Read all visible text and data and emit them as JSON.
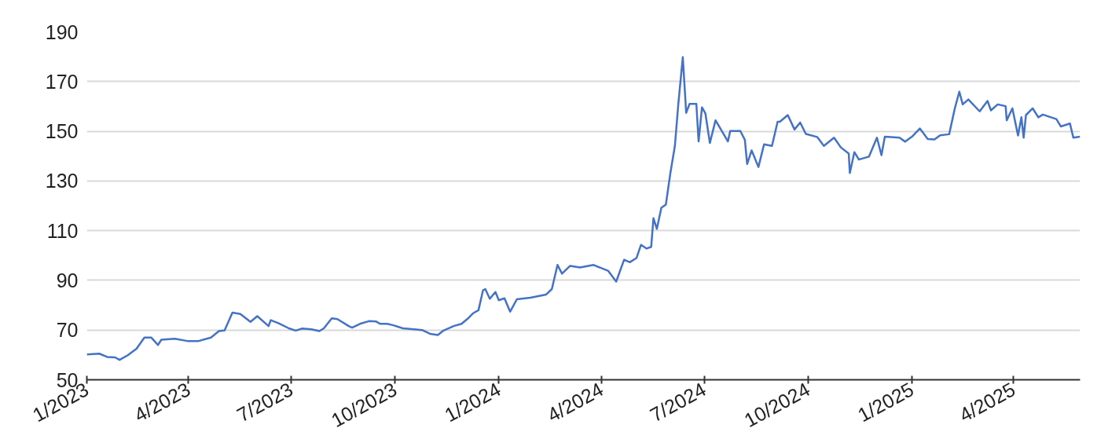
{
  "chart_data": {
    "type": "line",
    "xlim": [
      "2023-01-01",
      "2025-05-30"
    ],
    "ylim": [
      50,
      190
    ],
    "yticks": [
      50,
      70,
      90,
      110,
      130,
      150,
      170,
      190
    ],
    "xticks": [
      {
        "value": "2023-01-01",
        "label": "1/2023"
      },
      {
        "value": "2023-04-01",
        "label": "4/2023"
      },
      {
        "value": "2023-07-01",
        "label": "7/2023"
      },
      {
        "value": "2023-10-01",
        "label": "10/2023"
      },
      {
        "value": "2024-01-01",
        "label": "1/2024"
      },
      {
        "value": "2024-04-01",
        "label": "4/2024"
      },
      {
        "value": "2024-07-01",
        "label": "7/2024"
      },
      {
        "value": "2024-10-01",
        "label": "10/2024"
      },
      {
        "value": "2025-01-01",
        "label": "1/2025"
      },
      {
        "value": "2025-04-01",
        "label": "4/2025"
      }
    ],
    "grid": "y",
    "marker": "none",
    "line_style": "solid",
    "x": [
      "2023-01-01",
      "2023-01-12",
      "2023-01-19",
      "2023-01-26",
      "2023-01-30",
      "2023-02-06",
      "2023-02-14",
      "2023-02-21",
      "2023-02-27",
      "2023-03-05",
      "2023-03-08",
      "2023-03-20",
      "2023-03-31",
      "2023-04-10",
      "2023-04-21",
      "2023-04-28",
      "2023-05-03",
      "2023-05-10",
      "2023-05-17",
      "2023-05-26",
      "2023-06-01",
      "2023-06-11",
      "2023-06-13",
      "2023-06-20",
      "2023-06-29",
      "2023-07-05",
      "2023-07-11",
      "2023-07-19",
      "2023-07-26",
      "2023-07-30",
      "2023-08-06",
      "2023-08-11",
      "2023-08-21",
      "2023-08-24",
      "2023-08-31",
      "2023-09-08",
      "2023-09-14",
      "2023-09-18",
      "2023-09-24",
      "2023-09-29",
      "2023-10-08",
      "2023-10-18",
      "2023-10-25",
      "2023-11-01",
      "2023-11-08",
      "2023-11-13",
      "2023-11-22",
      "2023-11-29",
      "2023-12-04",
      "2023-12-09",
      "2023-12-14",
      "2023-12-18",
      "2023-12-20",
      "2023-12-24",
      "2023-12-29",
      "2024-01-01",
      "2024-01-06",
      "2024-01-11",
      "2024-01-17",
      "2024-01-29",
      "2024-02-12",
      "2024-02-17",
      "2024-02-22",
      "2024-02-26",
      "2024-03-04",
      "2024-03-13",
      "2024-03-25",
      "2024-04-07",
      "2024-04-14",
      "2024-04-21",
      "2024-04-26",
      "2024-05-02",
      "2024-05-06",
      "2024-05-11",
      "2024-05-15",
      "2024-05-17",
      "2024-05-20",
      "2024-05-24",
      "2024-05-28",
      "2024-06-01",
      "2024-06-05",
      "2024-06-08",
      "2024-06-12",
      "2024-06-15",
      "2024-06-18",
      "2024-06-24",
      "2024-06-26",
      "2024-06-29",
      "2024-07-02",
      "2024-07-06",
      "2024-07-11",
      "2024-07-22",
      "2024-07-24",
      "2024-08-02",
      "2024-08-06",
      "2024-08-08",
      "2024-08-12",
      "2024-08-18",
      "2024-08-23",
      "2024-08-30",
      "2024-09-04",
      "2024-09-06",
      "2024-09-13",
      "2024-09-19",
      "2024-09-24",
      "2024-09-29",
      "2024-10-09",
      "2024-10-15",
      "2024-10-24",
      "2024-10-30",
      "2024-11-06",
      "2024-11-07",
      "2024-11-11",
      "2024-11-15",
      "2024-11-24",
      "2024-12-01",
      "2024-12-05",
      "2024-12-08",
      "2024-12-21",
      "2024-12-26",
      "2025-01-01",
      "2025-01-08",
      "2025-01-15",
      "2025-01-21",
      "2025-01-26",
      "2025-02-03",
      "2025-02-08",
      "2025-02-12",
      "2025-02-15",
      "2025-02-20",
      "2025-03-02",
      "2025-03-09",
      "2025-03-12",
      "2025-03-18",
      "2025-03-25",
      "2025-03-26",
      "2025-03-31",
      "2025-04-05",
      "2025-04-08",
      "2025-04-10",
      "2025-04-12",
      "2025-04-18",
      "2025-04-23",
      "2025-04-27",
      "2025-05-09",
      "2025-05-13",
      "2025-05-21",
      "2025-05-24",
      "2025-05-30"
    ],
    "series": [
      {
        "color": "#4472c4",
        "values": [
          60.2,
          60.5,
          59.2,
          59,
          58,
          59.8,
          62.5,
          67,
          67,
          64,
          66.1,
          66.5,
          65.6,
          65.6,
          67,
          69.6,
          69.8,
          77,
          76.5,
          73.3,
          75.6,
          71.6,
          74,
          72.7,
          70.7,
          69.8,
          70.6,
          70.3,
          69.6,
          70.7,
          74.7,
          74.4,
          71.6,
          71,
          72.5,
          73.6,
          73.5,
          72.5,
          72.5,
          72,
          70.7,
          70.3,
          70,
          68.5,
          68,
          69.8,
          71.6,
          72.5,
          74.4,
          76.7,
          78,
          86,
          86.5,
          82.6,
          85.3,
          82,
          82.8,
          77.4,
          82.4,
          83,
          84.3,
          86.5,
          96.2,
          92.7,
          95.8,
          95.2,
          96.2,
          93.8,
          89.5,
          98.3,
          97.3,
          99,
          104.3,
          102.8,
          103.5,
          115,
          110.7,
          119.2,
          120.5,
          133.2,
          144.1,
          160.8,
          179.8,
          157.4,
          161,
          161,
          145.9,
          159.6,
          157.2,
          145.3,
          154.4,
          145.9,
          150.1,
          150.1,
          146.5,
          136.8,
          142.3,
          135.6,
          144.7,
          144.1,
          153.8,
          153.8,
          156.5,
          150.7,
          153.5,
          148.9,
          147.7,
          144.1,
          147.4,
          143.5,
          141,
          133.2,
          141.6,
          138.6,
          139.8,
          147.4,
          140.4,
          147.8,
          147.4,
          145.8,
          147.8,
          151.1,
          146.9,
          146.7,
          148.4,
          148.8,
          159.2,
          165.9,
          160.8,
          162.8,
          158,
          162.2,
          158.4,
          160.8,
          160.1,
          154.4,
          159.2,
          148.3,
          155.6,
          147.4,
          156.5,
          159.2,
          155.6,
          156.7,
          154.9,
          151.9,
          153.1,
          147.4,
          147.8
        ]
      }
    ]
  }
}
